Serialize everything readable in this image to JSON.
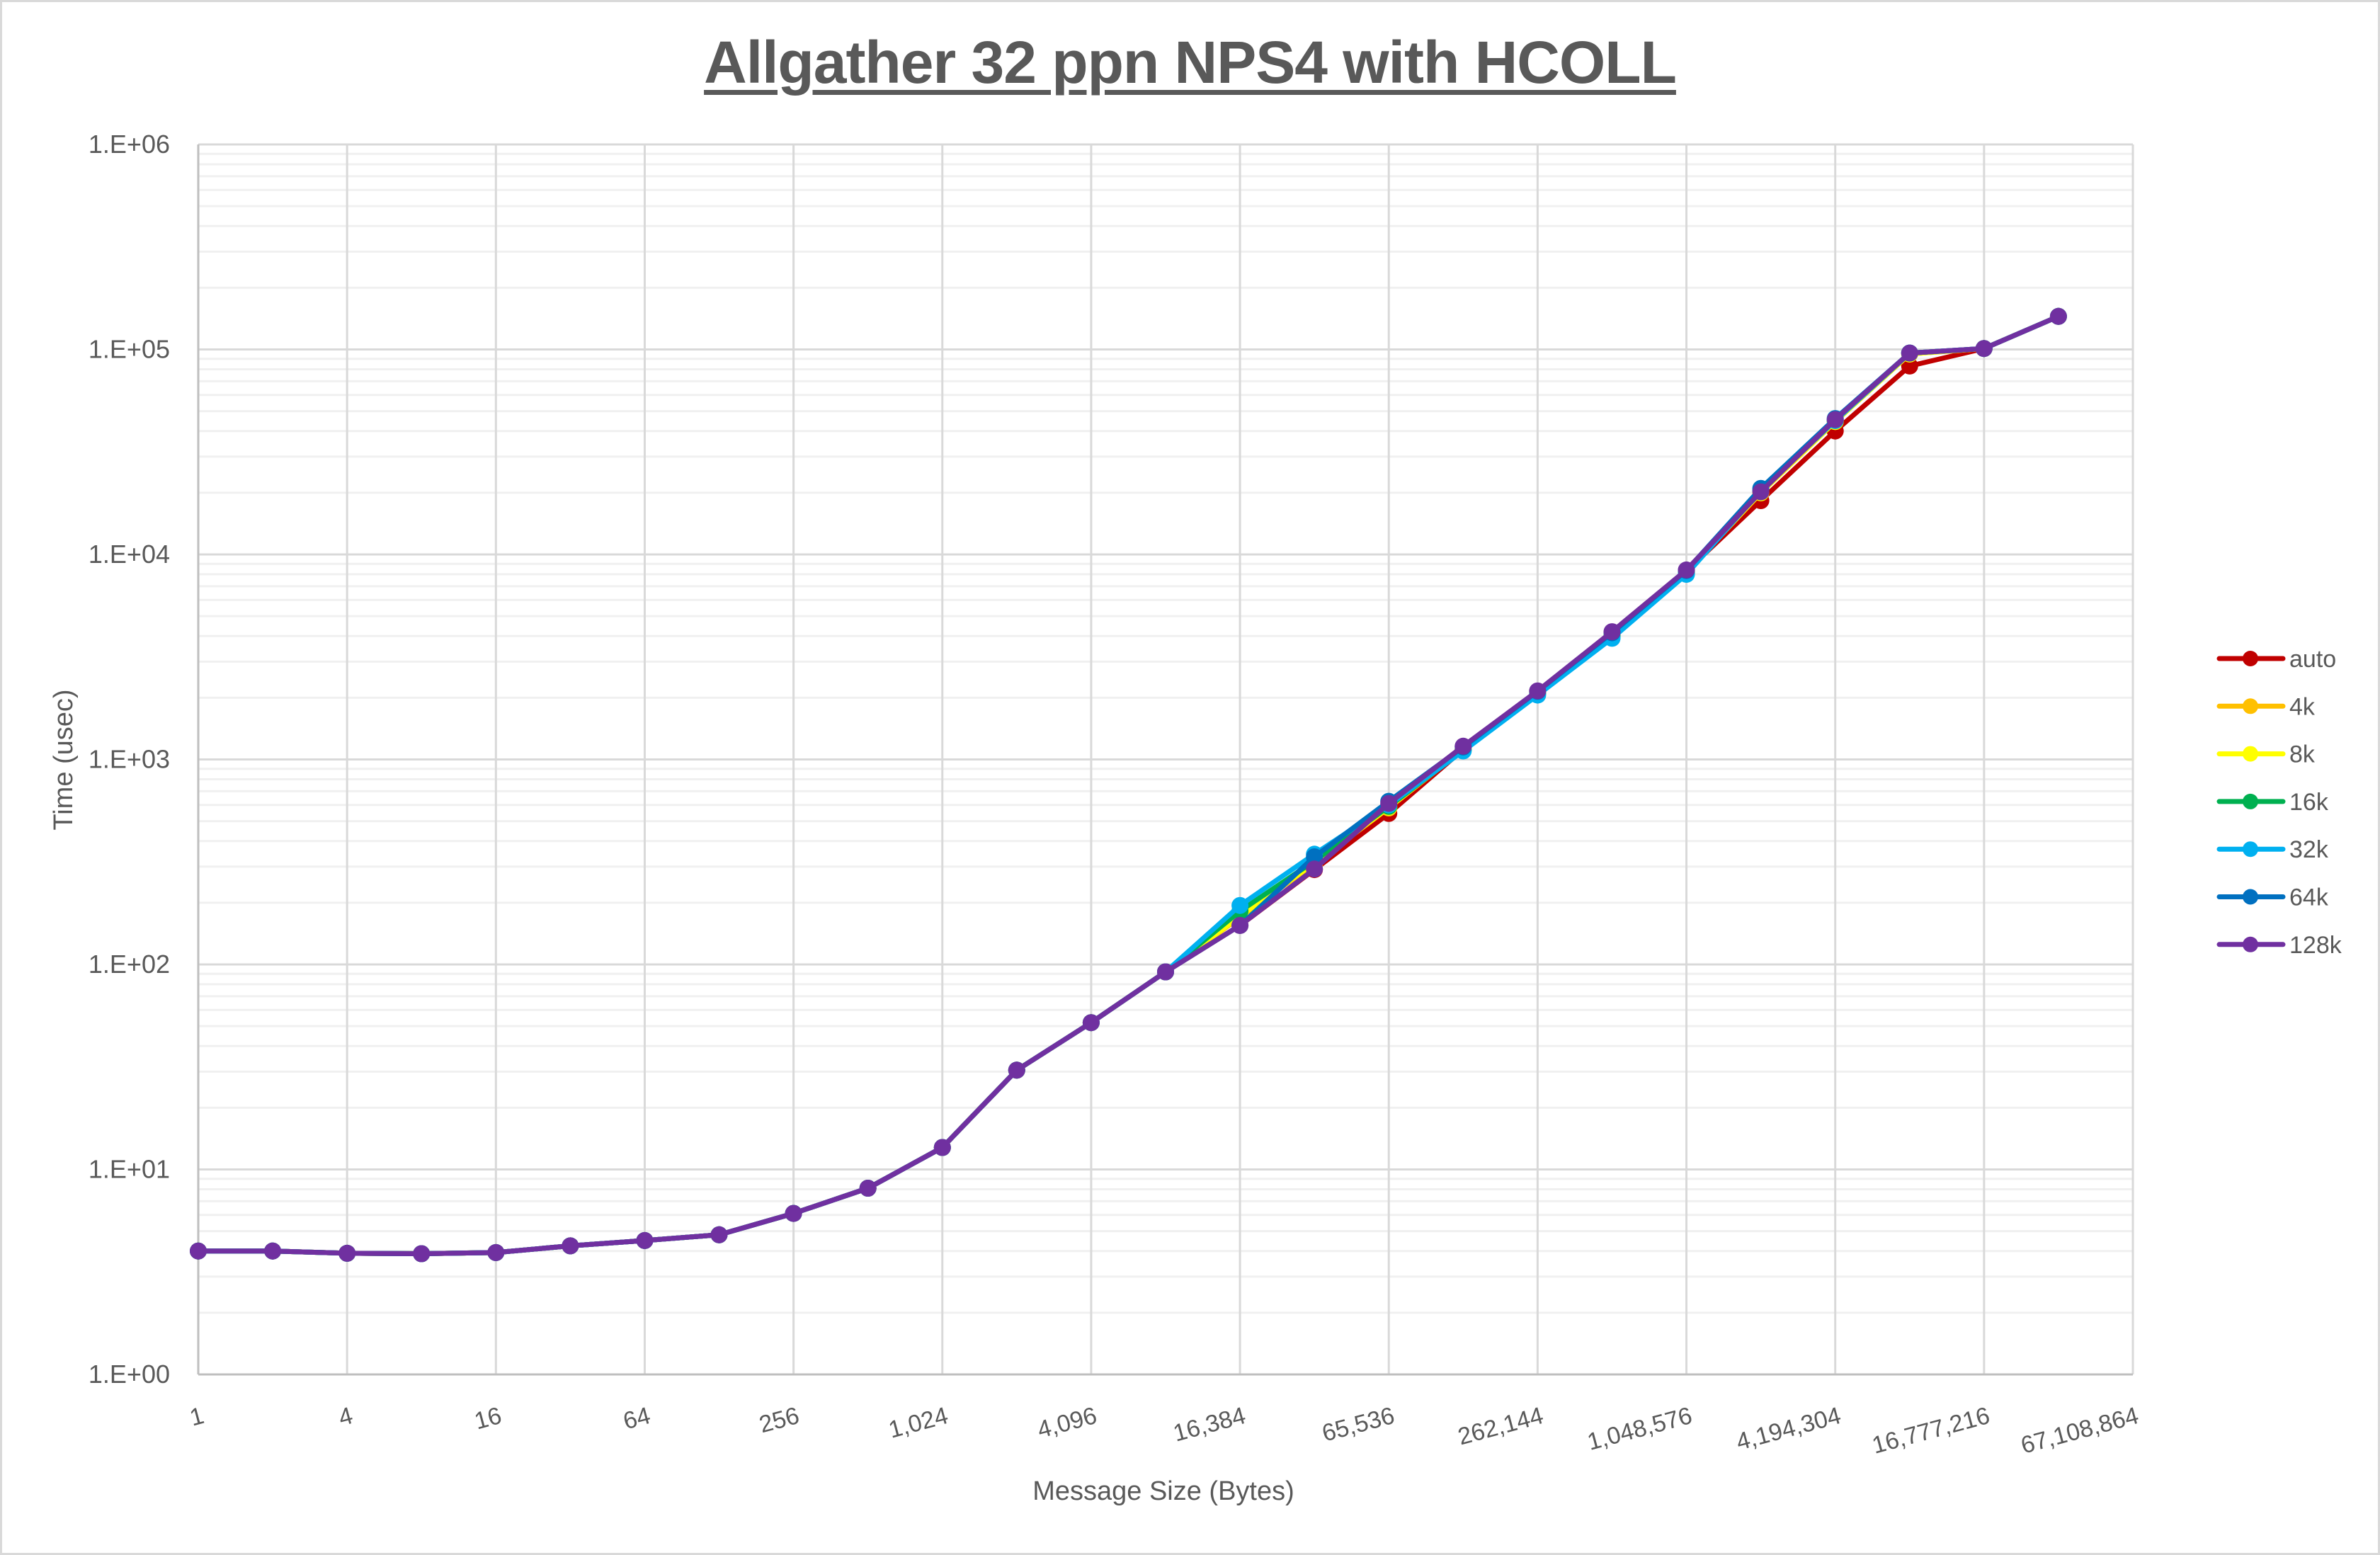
{
  "title": "Allgather 32 ppn NPS4 with HCOLL",
  "chart_data": {
    "type": "line",
    "title": "Allgather 32 ppn NPS4 with HCOLL",
    "xlabel": "Message Size (Bytes)",
    "ylabel": "Time (usec)",
    "x_scale": "log2",
    "y_scale": "log10",
    "ylim": [
      1,
      1000000
    ],
    "xlim": [
      1,
      67108864
    ],
    "y_tick_labels": [
      "1.E+00",
      "1.E+01",
      "1.E+02",
      "1.E+03",
      "1.E+04",
      "1.E+05",
      "1.E+06"
    ],
    "x_tick_labels": [
      "1",
      "4",
      "16",
      "64",
      "256",
      "1,024",
      "4,096",
      "16,384",
      "65,536",
      "262,144",
      "1,048,576",
      "4,194,304",
      "16,777,216",
      "67,108,864"
    ],
    "grid": true,
    "legend_position": "right",
    "x": [
      1,
      2,
      4,
      8,
      16,
      32,
      64,
      128,
      256,
      512,
      1024,
      2048,
      4096,
      8192,
      16384,
      32768,
      65536,
      131072,
      262144,
      524288,
      1048576,
      2097152,
      4194304,
      8388608,
      16777216,
      33554432
    ],
    "series": [
      {
        "name": "auto",
        "color": "#C00000",
        "values": [
          4.0,
          4.0,
          3.9,
          3.88,
          3.93,
          4.24,
          4.5,
          4.8,
          6.1,
          8.1,
          12.8,
          30.5,
          52,
          92,
          155,
          290,
          545,
          1120,
          2150,
          4150,
          8300,
          18300,
          40000,
          83000,
          101000,
          145000
        ]
      },
      {
        "name": "4k",
        "color": "#FFC000",
        "values": [
          4.0,
          4.0,
          3.9,
          3.88,
          3.93,
          4.24,
          4.5,
          4.8,
          6.1,
          8.1,
          12.8,
          30.5,
          52,
          92,
          170,
          310,
          580,
          1120,
          2120,
          4050,
          8200,
          20000,
          44500,
          95000,
          101000,
          145000
        ]
      },
      {
        "name": "8k",
        "color": "#FFFF00",
        "values": [
          4.0,
          4.0,
          3.9,
          3.88,
          3.93,
          4.24,
          4.5,
          4.8,
          6.1,
          8.1,
          12.8,
          30.5,
          52,
          92,
          172,
          312,
          585,
          1120,
          2120,
          4050,
          8200,
          20000,
          44500,
          95000,
          101000,
          145000
        ]
      },
      {
        "name": "16k",
        "color": "#00B050",
        "values": [
          4.0,
          4.0,
          3.9,
          3.88,
          3.93,
          4.24,
          4.5,
          4.8,
          6.1,
          8.1,
          12.8,
          30.5,
          52,
          92,
          182,
          320,
          590,
          1110,
          2100,
          4000,
          8100,
          20500,
          45000,
          96000,
          101000,
          145000
        ]
      },
      {
        "name": "32k",
        "color": "#00B0F0",
        "values": [
          4.0,
          4.0,
          3.9,
          3.88,
          3.93,
          4.24,
          4.5,
          4.8,
          6.1,
          8.1,
          12.8,
          30.5,
          52,
          92,
          194,
          345,
          600,
          1100,
          2060,
          3900,
          8000,
          20500,
          45000,
          96000,
          101000,
          145000
        ]
      },
      {
        "name": "64k",
        "color": "#0070C0",
        "values": [
          4.0,
          4.0,
          3.9,
          3.88,
          3.93,
          4.24,
          4.5,
          4.8,
          6.1,
          8.1,
          12.8,
          30.5,
          52,
          92,
          155,
          335,
          625,
          1150,
          2150,
          4150,
          8350,
          21000,
          46000,
          96000,
          101000,
          145000
        ]
      },
      {
        "name": "128k",
        "color": "#7030A0",
        "values": [
          4.0,
          4.0,
          3.9,
          3.88,
          3.93,
          4.24,
          4.5,
          4.8,
          6.1,
          8.1,
          12.8,
          30.5,
          52,
          92,
          155,
          292,
          610,
          1160,
          2160,
          4200,
          8400,
          20200,
          45500,
          96000,
          101000,
          145000
        ]
      }
    ]
  },
  "legend": [
    {
      "label": "auto",
      "color": "#C00000"
    },
    {
      "label": "4k",
      "color": "#FFC000"
    },
    {
      "label": "8k",
      "color": "#FFFF00"
    },
    {
      "label": "16k",
      "color": "#00B050"
    },
    {
      "label": "32k",
      "color": "#00B0F0"
    },
    {
      "label": "64k",
      "color": "#0070C0"
    },
    {
      "label": "128k",
      "color": "#7030A0"
    }
  ],
  "axes": {
    "x_title": "Message Size (Bytes)",
    "y_title": "Time (usec)"
  }
}
